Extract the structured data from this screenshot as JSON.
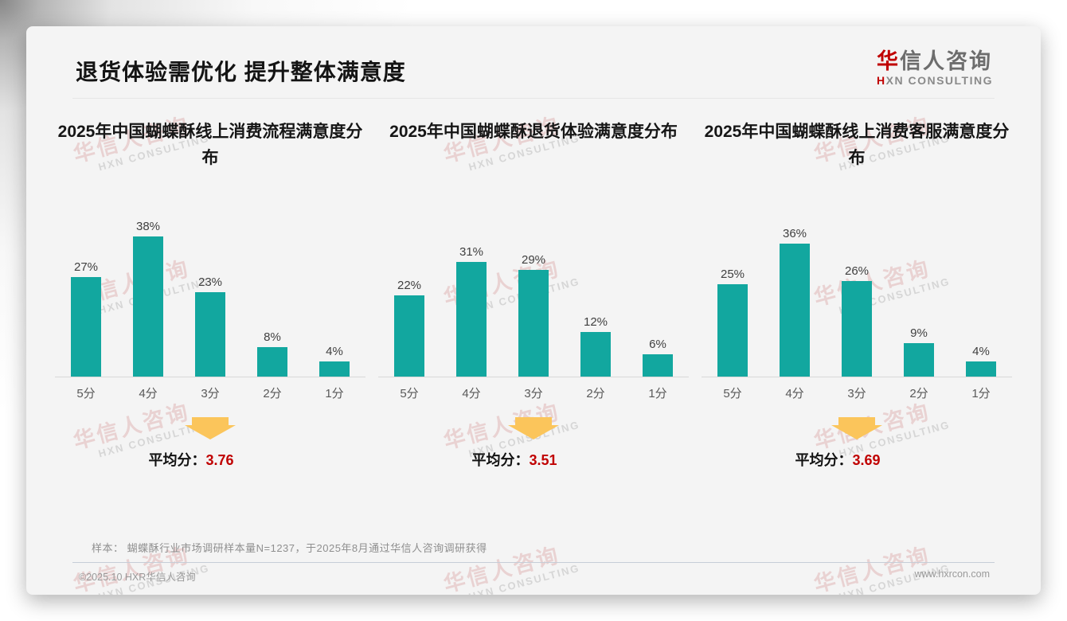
{
  "page": {
    "main_title": "退货体验需优化 提升整体满意度",
    "logo": {
      "cn_red": "华",
      "cn_rest": "信人咨询",
      "en_red": "H",
      "en_rest": "XN CONSULTING"
    },
    "watermark": {
      "line1": "华信人咨询",
      "line2": "HXN CONSULTING"
    },
    "note": "样本： 蝴蝶酥行业市场调研样本量N=1237，于2025年8月通过华信人咨询调研获得",
    "footer_left": "©2025.10 HXR华信人咨询",
    "footer_right": "www.hxrcon.com"
  },
  "colors": {
    "bar": "#12a79f",
    "arrow": "#fbc55b",
    "average_value": "#c00000",
    "logo_red": "#c00000"
  },
  "chart_data": [
    {
      "type": "bar",
      "title": "2025年中国蝴蝶酥线上消费流程满意度分布",
      "categories": [
        "5分",
        "4分",
        "3分",
        "2分",
        "1分"
      ],
      "values": [
        27,
        38,
        23,
        8,
        4
      ],
      "unit": "%",
      "value_labels": [
        "27%",
        "38%",
        "23%",
        "8%",
        "4%"
      ],
      "average_label": "平均分：",
      "average": "3.76",
      "ylim": [
        0,
        40
      ],
      "grid": false,
      "legend": "none"
    },
    {
      "type": "bar",
      "title": "2025年中国蝴蝶酥退货体验满意度分布",
      "categories": [
        "5分",
        "4分",
        "3分",
        "2分",
        "1分"
      ],
      "values": [
        22,
        31,
        29,
        12,
        6
      ],
      "unit": "%",
      "value_labels": [
        "22%",
        "31%",
        "29%",
        "12%",
        "6%"
      ],
      "average_label": "平均分：",
      "average": "3.51",
      "ylim": [
        0,
        40
      ],
      "grid": false,
      "legend": "none"
    },
    {
      "type": "bar",
      "title": "2025年中国蝴蝶酥线上消费客服满意度分布",
      "categories": [
        "5分",
        "4分",
        "3分",
        "2分",
        "1分"
      ],
      "values": [
        25,
        36,
        26,
        9,
        4
      ],
      "unit": "%",
      "value_labels": [
        "25%",
        "36%",
        "26%",
        "9%",
        "4%"
      ],
      "average_label": "平均分：",
      "average": "3.69",
      "ylim": [
        0,
        40
      ],
      "grid": false,
      "legend": "none"
    }
  ]
}
